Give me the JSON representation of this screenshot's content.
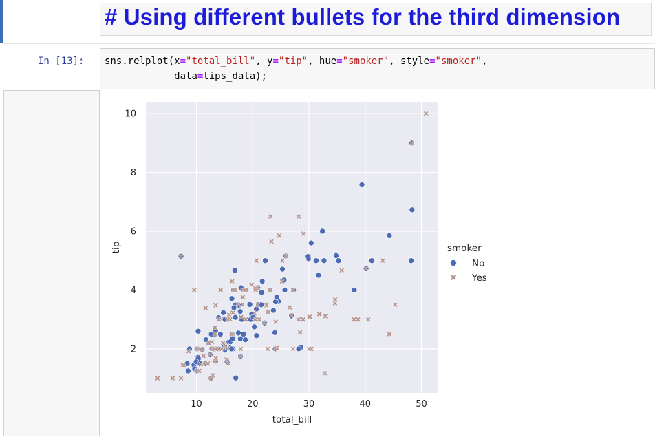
{
  "markdown_cell": {
    "text": "# Using different bullets for the third dimension"
  },
  "code_cell": {
    "prompt": "In [13]:",
    "line1": {
      "a": "sns.relplot(x",
      "b": "=",
      "c": "\"total_bill\"",
      "d": ", y",
      "e": "=",
      "f": "\"tip\"",
      "g": ", hue",
      "h": "=",
      "i": "\"smoker\"",
      "j": ", style",
      "k": "=",
      "l": "\"smoker\"",
      "m": ","
    },
    "line2": {
      "a": "data",
      "b": "=",
      "c": "tips_data);"
    }
  },
  "chart_data": {
    "type": "scatter",
    "xlabel": "total_bill",
    "ylabel": "tip",
    "xlim": [
      1,
      53
    ],
    "ylim": [
      0.5,
      10.4
    ],
    "xticks": [
      10,
      20,
      30,
      40,
      50
    ],
    "yticks": [
      2,
      4,
      6,
      8,
      10
    ],
    "grid": true,
    "legend": {
      "title": "smoker",
      "placement": "right",
      "entries": [
        "No",
        "Yes"
      ]
    },
    "colors": {
      "No": "#4c6bb5",
      "Yes": "#b5958d",
      "background": "#eaeaf2",
      "grid": "#ffffff"
    },
    "series": [
      {
        "name": "No",
        "marker": "circle",
        "x": [
          16.99,
          10.34,
          21.01,
          23.68,
          24.59,
          25.29,
          8.77,
          26.88,
          15.04,
          14.78,
          10.27,
          35.26,
          15.42,
          18.43,
          14.83,
          21.58,
          10.33,
          16.29,
          16.97,
          20.65,
          17.92,
          20.29,
          15.77,
          39.42,
          19.82,
          17.81,
          13.37,
          12.69,
          21.7,
          19.65,
          9.55,
          18.35,
          15.06,
          20.69,
          17.78,
          24.06,
          16.31,
          16.93,
          18.69,
          31.27,
          16.04,
          17.46,
          13.94,
          9.68,
          30.4,
          18.29,
          22.23,
          32.4,
          28.55,
          18.04,
          12.54,
          10.29,
          34.81,
          9.94,
          25.56,
          19.49,
          38.07,
          23.95,
          25.71,
          17.31,
          29.93,
          48.27,
          48.17,
          48.33,
          40.17,
          32.68,
          34.83,
          44.3,
          29.85,
          41.19,
          25.89,
          24.01,
          31.71,
          11.61,
          12.16,
          13.42,
          8.35,
          16.45,
          24.27,
          13.81,
          11.69,
          14.26,
          16.58,
          15.98,
          7.25,
          22.12,
          16.82,
          27.28,
          28.17,
          20.08,
          12.6,
          11.02,
          16.4,
          10.07,
          20.92,
          15.01,
          10.65,
          12.43,
          13.51,
          18.71,
          12.74,
          13.0,
          16.2,
          13.27,
          17.59,
          16.49,
          21.5,
          12.66,
          13.28,
          17.82,
          16.66,
          13.0,
          8.51,
          13.39,
          16.21,
          10.09
        ],
        "y": [
          1.01,
          1.66,
          3.5,
          3.31,
          3.61,
          4.71,
          2.0,
          3.12,
          1.96,
          3.23,
          1.71,
          5.0,
          1.57,
          3.0,
          3.02,
          3.92,
          1.67,
          3.71,
          3.5,
          3.35,
          4.08,
          2.75,
          2.23,
          7.58,
          3.18,
          2.34,
          2.0,
          2.0,
          4.3,
          3.0,
          1.45,
          2.5,
          3.0,
          2.45,
          3.27,
          3.6,
          2.0,
          3.07,
          2.31,
          5.0,
          2.24,
          2.54,
          3.06,
          1.32,
          5.6,
          3.0,
          5.0,
          6.0,
          2.05,
          3.0,
          2.5,
          2.6,
          5.2,
          1.56,
          4.34,
          3.51,
          4.0,
          2.55,
          4.0,
          3.5,
          5.07,
          9.0,
          5.0,
          6.73,
          4.73,
          5.0,
          5.17,
          5.85,
          5.14,
          5.0,
          5.16,
          2.0,
          4.5,
          1.5,
          2.2,
          1.58,
          1.5,
          2.47,
          3.76,
          2.0,
          2.31,
          2.5,
          4.0,
          2.03,
          5.15,
          2.88,
          4.67,
          4.0,
          2.0,
          3.08,
          1.0,
          1.98,
          2.34,
          1.25,
          4.08,
          2.09,
          1.5,
          1.8,
          2.0,
          4.0,
          2.01,
          2.0,
          2.0,
          2.5,
          3.48,
          2.0,
          3.5,
          2.5,
          2.0,
          1.75,
          3.4,
          2.0,
          1.25,
          2.61,
          2.0,
          2.0
        ]
      },
      {
        "name": "Yes",
        "marker": "x",
        "x": [
          38.01,
          11.24,
          20.29,
          13.81,
          11.02,
          18.29,
          3.07,
          15.01,
          26.86,
          25.28,
          14.73,
          10.51,
          17.92,
          44.3,
          22.42,
          20.92,
          15.36,
          20.49,
          25.21,
          18.24,
          14.31,
          14.0,
          7.25,
          13.03,
          18.28,
          24.71,
          21.16,
          28.97,
          22.49,
          5.75,
          16.32,
          22.75,
          40.55,
          20.69,
          20.9,
          30.46,
          18.15,
          23.1,
          15.69,
          19.81,
          28.44,
          15.48,
          16.58,
          7.56,
          10.34,
          43.11,
          13.0,
          13.51,
          18.71,
          12.74,
          13.0,
          16.4,
          20.53,
          16.47,
          26.59,
          38.73,
          24.27,
          12.76,
          30.06,
          25.89,
          48.33,
          13.27,
          28.17,
          12.9,
          28.15,
          11.59,
          7.74,
          30.14,
          12.16,
          13.42,
          8.58,
          15.98,
          13.42,
          16.27,
          10.09,
          20.45,
          13.28,
          22.12,
          24.01,
          15.69,
          11.61,
          10.77,
          15.53,
          10.07,
          12.6,
          32.83,
          35.83,
          29.03,
          27.18,
          22.67,
          17.82,
          50.81,
          15.81,
          7.25,
          31.85,
          16.82,
          32.9,
          17.89,
          14.48,
          9.6,
          34.63,
          34.65,
          23.33,
          45.35,
          23.17,
          40.17,
          27.2,
          12.03,
          12.43,
          24.08,
          13.42,
          17.47,
          18.78
        ],
        "y": [
          3.0,
          1.76,
          3.21,
          2.0,
          1.98,
          3.76,
          1.0,
          2.09,
          3.14,
          5.0,
          2.2,
          1.25,
          3.08,
          2.5,
          3.48,
          4.08,
          1.64,
          4.06,
          4.29,
          3.76,
          4.0,
          3.0,
          1.0,
          2.0,
          4.0,
          5.85,
          3.0,
          3.0,
          3.5,
          1.0,
          4.3,
          3.25,
          3.0,
          5.0,
          3.5,
          2.0,
          3.5,
          4.0,
          1.5,
          4.19,
          2.56,
          2.02,
          4.0,
          1.44,
          2.0,
          5.0,
          2.0,
          2.0,
          4.0,
          2.01,
          2.0,
          2.5,
          4.0,
          3.23,
          3.41,
          3.0,
          2.03,
          2.23,
          2.0,
          5.16,
          9.0,
          2.5,
          6.5,
          1.1,
          3.0,
          1.5,
          1.44,
          3.09,
          2.2,
          3.48,
          1.92,
          3.0,
          1.58,
          2.5,
          2.0,
          3.0,
          2.72,
          2.88,
          2.0,
          3.0,
          3.39,
          1.47,
          3.0,
          1.25,
          1.0,
          1.17,
          4.67,
          5.92,
          2.0,
          2.0,
          1.75,
          10.0,
          3.16,
          5.15,
          3.18,
          4.0,
          3.11,
          2.0,
          2.0,
          4.0,
          3.55,
          3.68,
          5.65,
          3.5,
          6.5,
          4.73,
          4.0,
          1.5,
          1.8,
          2.92,
          1.68,
          3.5,
          3.0
        ]
      }
    ]
  }
}
